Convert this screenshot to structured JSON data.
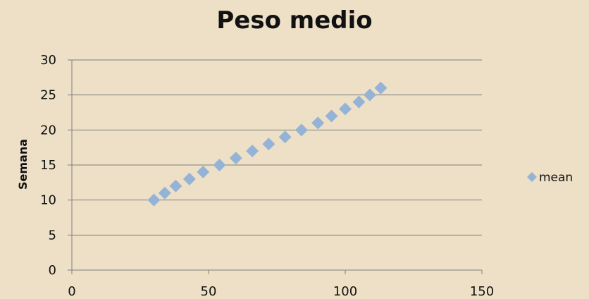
{
  "chart_data": {
    "type": "scatter",
    "title": "Peso medio",
    "xlabel": "",
    "ylabel": "Semana",
    "xlim": [
      0,
      150
    ],
    "ylim": [
      0,
      30
    ],
    "xticks": [
      "0",
      "50",
      "100",
      "150"
    ],
    "yticks": [
      "0",
      "5",
      "10",
      "15",
      "20",
      "25",
      "30"
    ],
    "grid": "horizontal",
    "legend_position": "right",
    "series": [
      {
        "name": "mean",
        "color": "#95b3d7",
        "marker": "diamond",
        "points": [
          {
            "x": 30,
            "y": 10
          },
          {
            "x": 34,
            "y": 11
          },
          {
            "x": 38,
            "y": 12
          },
          {
            "x": 43,
            "y": 13
          },
          {
            "x": 48,
            "y": 14
          },
          {
            "x": 54,
            "y": 15
          },
          {
            "x": 60,
            "y": 16
          },
          {
            "x": 66,
            "y": 17
          },
          {
            "x": 72,
            "y": 18
          },
          {
            "x": 78,
            "y": 19
          },
          {
            "x": 84,
            "y": 20
          },
          {
            "x": 90,
            "y": 21
          },
          {
            "x": 95,
            "y": 22
          },
          {
            "x": 100,
            "y": 23
          },
          {
            "x": 105,
            "y": 24
          },
          {
            "x": 109,
            "y": 25
          },
          {
            "x": 113,
            "y": 26
          }
        ]
      }
    ]
  }
}
